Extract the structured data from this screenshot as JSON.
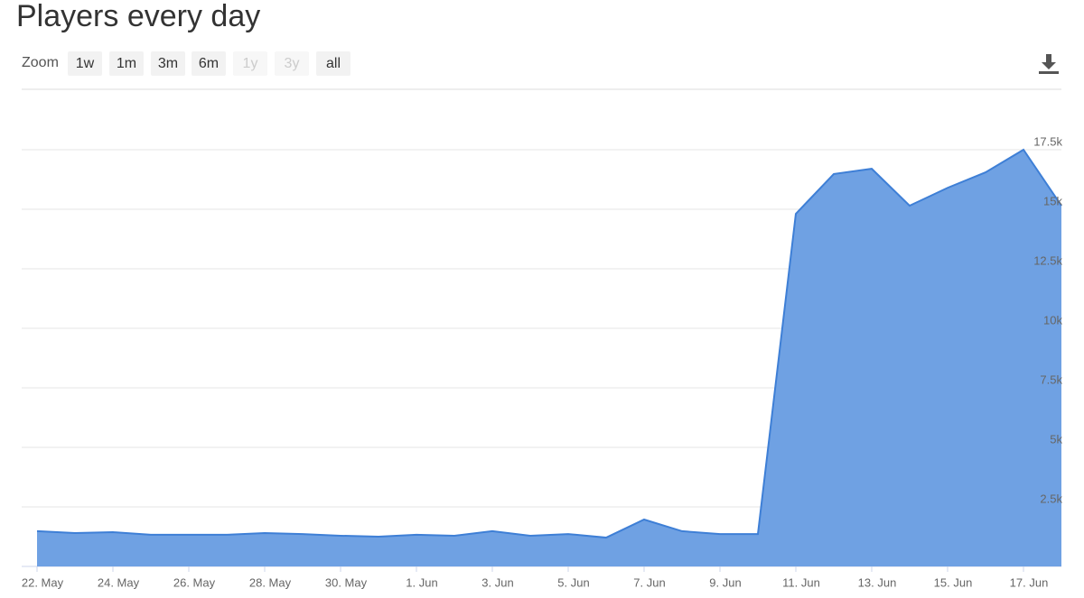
{
  "chart_data": {
    "type": "area",
    "title": "Players every day",
    "zoom_label": "Zoom",
    "zoom_options": [
      "1w",
      "1m",
      "3m",
      "6m",
      "1y",
      "3y",
      "all"
    ],
    "zoom_enabled": [
      true,
      true,
      true,
      true,
      false,
      false,
      true
    ],
    "categories": [
      "22. May",
      null,
      "24. May",
      null,
      "26. May",
      null,
      "28. May",
      null,
      "30. May",
      null,
      "1. Jun",
      null,
      "3. Jun",
      null,
      "5. Jun",
      null,
      "7. Jun",
      null,
      "9. Jun",
      null,
      "11. Jun",
      null,
      "13. Jun",
      null,
      "15. Jun",
      null,
      "17. Jun",
      null
    ],
    "values": [
      1480,
      1400,
      1440,
      1330,
      1330,
      1330,
      1400,
      1360,
      1290,
      1250,
      1330,
      1290,
      1480,
      1290,
      1360,
      1210,
      1970,
      1480,
      1360,
      1360,
      14810,
      16480,
      16700,
      15150,
      15900,
      16550,
      17500,
      15150
    ],
    "color": "#6fa1e3",
    "line_color": "#3e7fd6",
    "ylim": [
      0,
      17500
    ],
    "yticks": [
      {
        "value": 2500,
        "label": "2.5k"
      },
      {
        "value": 5000,
        "label": "5k"
      },
      {
        "value": 7500,
        "label": "7.5k"
      },
      {
        "value": 10000,
        "label": "10k"
      },
      {
        "value": 12500,
        "label": "12.5k"
      },
      {
        "value": 15000,
        "label": "15k"
      },
      {
        "value": 17500,
        "label": "17.5k"
      }
    ],
    "grid": true
  }
}
